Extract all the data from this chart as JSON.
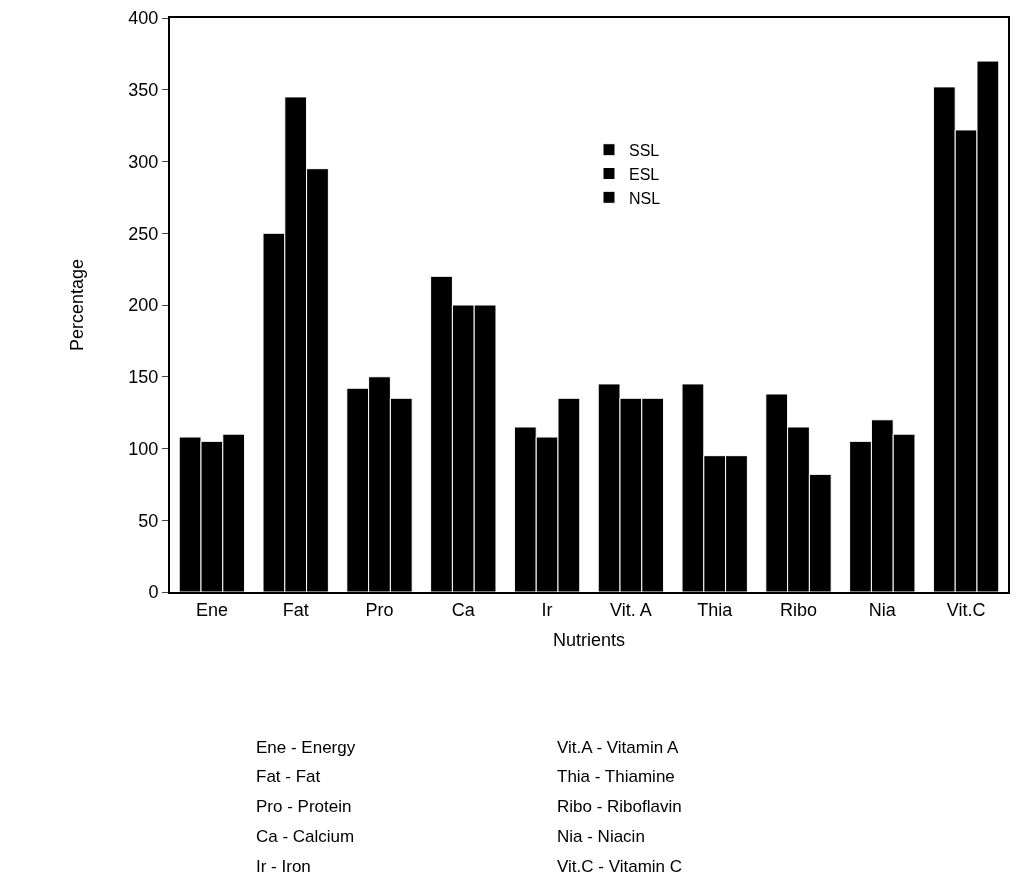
{
  "chart_data": {
    "type": "bar",
    "xlabel": "Nutrients",
    "ylabel": "Percentage",
    "categories": [
      "Ene",
      "Fat",
      "Pro",
      "Ca",
      "Ir",
      "Vit. A",
      "Thia",
      "Ribo",
      "Nia",
      "Vit.C"
    ],
    "series": [
      {
        "name": "SSL",
        "color": "#000000",
        "values": [
          108,
          250,
          142,
          220,
          115,
          145,
          145,
          138,
          105,
          352
        ]
      },
      {
        "name": "ESL",
        "color": "#000000",
        "values": [
          105,
          345,
          150,
          200,
          108,
          135,
          95,
          115,
          120,
          322
        ]
      },
      {
        "name": "NSL",
        "color": "#000000",
        "values": [
          110,
          295,
          135,
          200,
          135,
          135,
          95,
          82,
          110,
          370
        ]
      }
    ],
    "ylim": [
      0,
      400
    ],
    "yticks": [
      0,
      50,
      100,
      150,
      200,
      250,
      300,
      350,
      400
    ],
    "grid": false,
    "legend": "top",
    "annotations": [
      "Ene - Energy",
      "Fat - Fat",
      "Pro - Protein",
      "Ca - Calcium",
      "Ir - Iron",
      "Vit.A - Vitamin A",
      "Thia - Thiamine",
      "Ribo - Riboflavin",
      "Nia - Niacin",
      "Vit.C - Vitamin C"
    ]
  }
}
